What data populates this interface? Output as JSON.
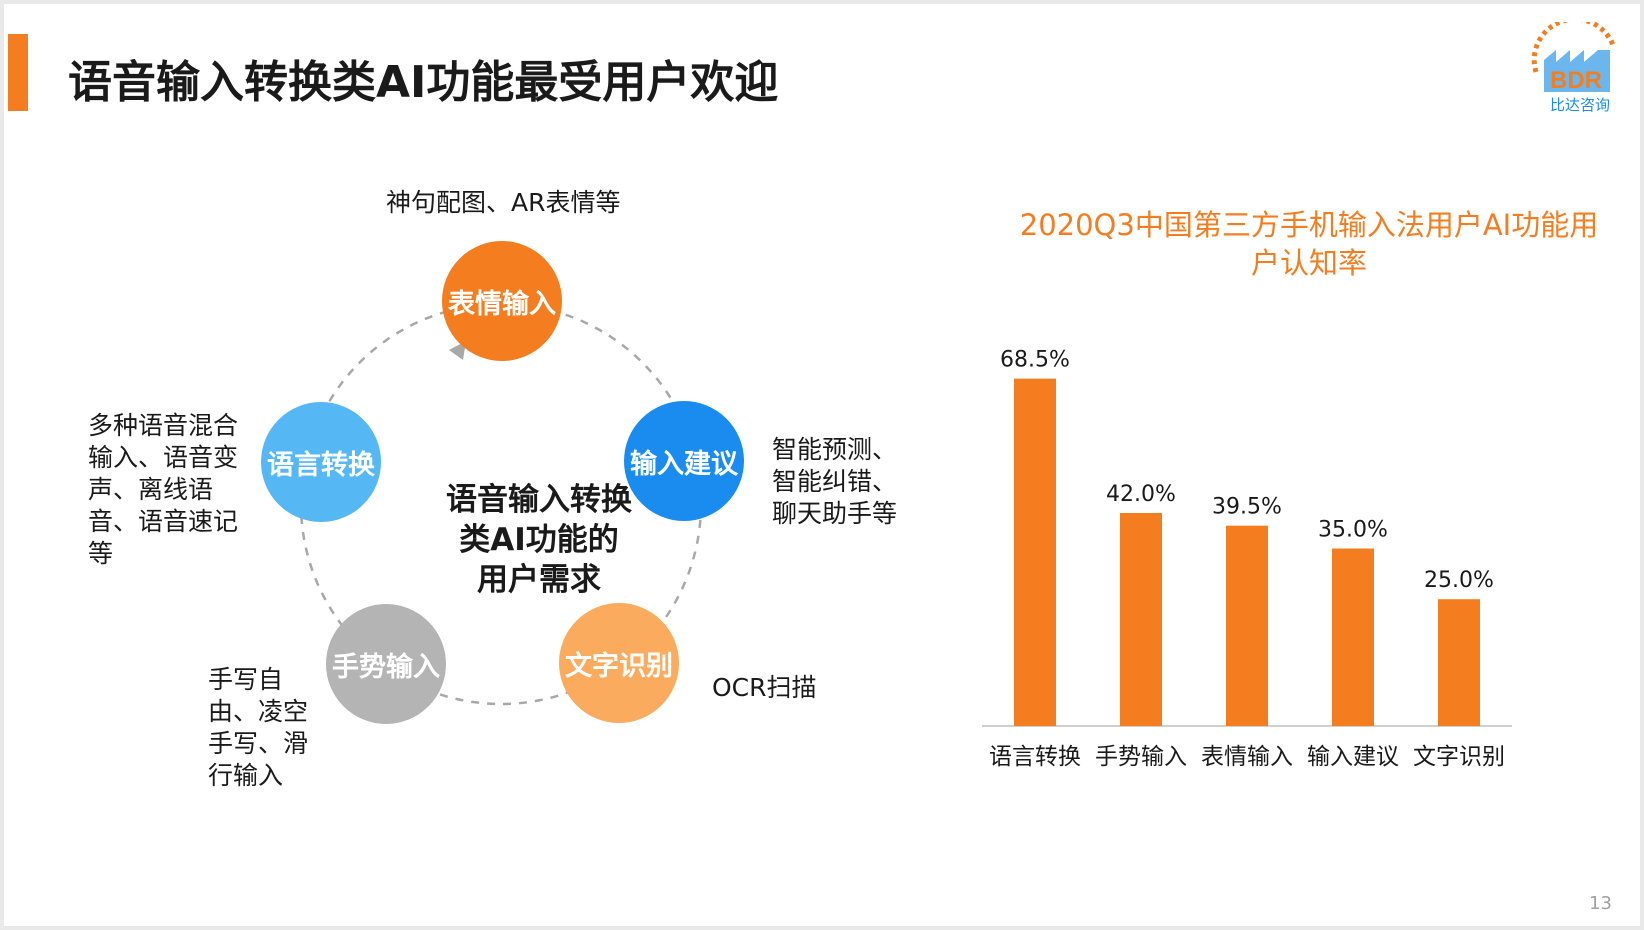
{
  "slide": {
    "title": "语音输入转换类AI功能最受用户欢迎",
    "page_number": "13",
    "logo": {
      "text": "BDR",
      "subtext": "比达咨询"
    },
    "colors": {
      "accent": "#f47d20"
    }
  },
  "diagram": {
    "center": "语音输入转换类AI功能的用户需求",
    "nodes": [
      {
        "label": "表情输入",
        "color": "#f47d20",
        "note": "神句配图、AR表情等"
      },
      {
        "label": "输入建议",
        "color": "#1a8cf0",
        "note": "智能预测、智能纠错、聊天助手等"
      },
      {
        "label": "文字识别",
        "color": "#fbab5d",
        "note": "OCR扫描"
      },
      {
        "label": "手势输入",
        "color": "#b4b4b4",
        "note": "手写自由、凌空手写、滑行输入"
      },
      {
        "label": "语言转换",
        "color": "#55b8f5",
        "note": "多种语音混合输入、语音变声、离线语音、语音速记等"
      }
    ]
  },
  "chart_data": {
    "type": "bar",
    "title": "2020Q3中国第三方手机输入法用户AI功能用户认知率",
    "categories": [
      "语言转换",
      "手势输入",
      "表情输入",
      "输入建议",
      "文字识别"
    ],
    "values": [
      68.5,
      42.0,
      39.5,
      35.0,
      25.0
    ],
    "value_labels": [
      "68.5%",
      "42.0%",
      "39.5%",
      "35.0%",
      "25.0%"
    ],
    "unit": "%",
    "ylim": [
      0,
      70
    ],
    "bar_color": "#f47d20",
    "grid": false,
    "legend": "none"
  }
}
